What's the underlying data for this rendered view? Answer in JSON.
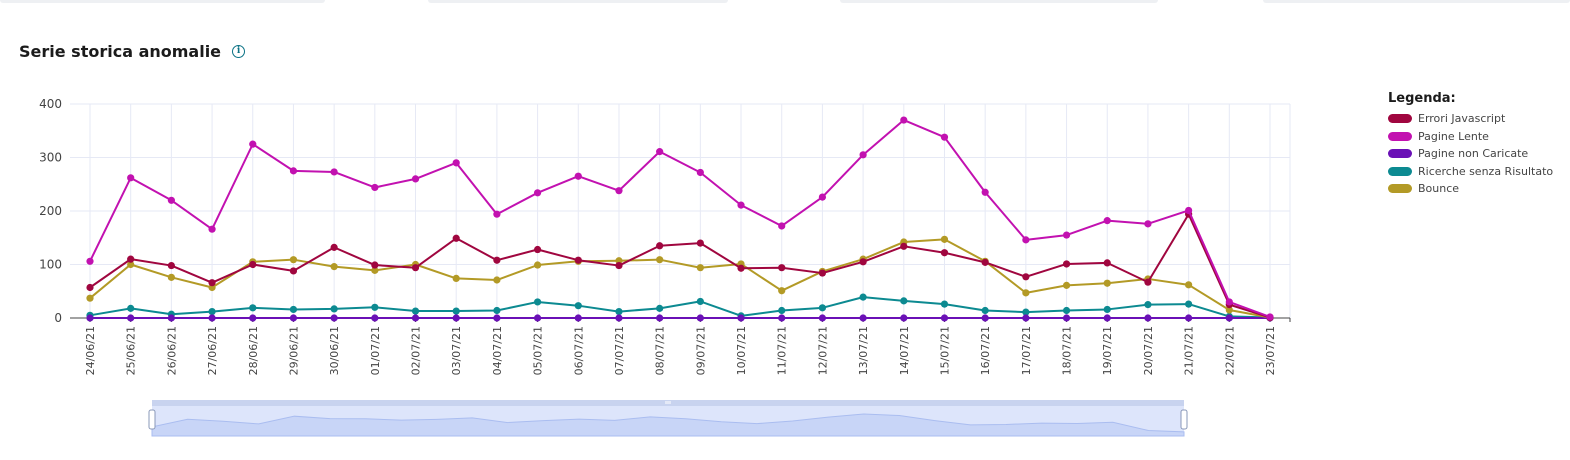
{
  "header": {
    "title": "Serie storica anomalie",
    "info_icon": "info-circle-icon"
  },
  "legend": {
    "title": "Legenda:"
  },
  "colors": {
    "grid": "#e6e9f5",
    "axis": "#444444",
    "brush_fill": "#dde5fb",
    "brush_series": "#c8d5f7"
  },
  "chart_data": {
    "type": "line",
    "x": [
      "24/06/21",
      "25/06/21",
      "26/06/21",
      "27/06/21",
      "28/06/21",
      "29/06/21",
      "30/06/21",
      "01/07/21",
      "02/07/21",
      "03/07/21",
      "04/07/21",
      "05/07/21",
      "06/07/21",
      "07/07/21",
      "08/07/21",
      "09/07/21",
      "10/07/21",
      "11/07/21",
      "12/07/21",
      "13/07/21",
      "14/07/21",
      "15/07/21",
      "16/07/21",
      "17/07/21",
      "18/07/21",
      "19/07/21",
      "20/07/21",
      "21/07/21",
      "22/07/21",
      "23/07/21"
    ],
    "ylim": [
      0,
      400
    ],
    "yticks": [
      0,
      100,
      200,
      300,
      400
    ],
    "grid": true,
    "legend_position": "right",
    "series": [
      {
        "name": "Errori Javascript",
        "color": "#a0063f",
        "values": [
          57,
          110,
          98,
          66,
          100,
          88,
          132,
          99,
          94,
          149,
          108,
          128,
          108,
          98,
          135,
          140,
          93,
          94,
          84,
          105,
          134,
          122,
          104,
          77,
          101,
          103,
          67,
          194,
          25,
          1
        ]
      },
      {
        "name": "Pagine Lente",
        "color": "#c211b0",
        "values": [
          106,
          262,
          220,
          166,
          325,
          275,
          273,
          244,
          260,
          290,
          194,
          234,
          265,
          238,
          311,
          272,
          211,
          172,
          226,
          305,
          370,
          338,
          235,
          146,
          155,
          182,
          176,
          201,
          30,
          2
        ]
      },
      {
        "name": "Pagine non Caricate",
        "color": "#6a10b6",
        "values": [
          0,
          0,
          0,
          0,
          0,
          0,
          0,
          0,
          0,
          0,
          0,
          0,
          0,
          0,
          0,
          0,
          0,
          0,
          0,
          0,
          0,
          0,
          0,
          0,
          0,
          0,
          0,
          0,
          0,
          0
        ]
      },
      {
        "name": "Ricerche senza Risultato",
        "color": "#0c8a91",
        "values": [
          5,
          18,
          7,
          12,
          19,
          16,
          17,
          20,
          13,
          13,
          14,
          30,
          23,
          12,
          18,
          31,
          4,
          14,
          19,
          39,
          32,
          26,
          14,
          11,
          14,
          16,
          25,
          26,
          3,
          1
        ]
      },
      {
        "name": "Bounce",
        "color": "#b39a26",
        "values": [
          37,
          100,
          76,
          57,
          105,
          109,
          96,
          89,
          100,
          74,
          71,
          99,
          106,
          107,
          109,
          94,
          101,
          51,
          87,
          110,
          142,
          147,
          106,
          47,
          61,
          65,
          73,
          62,
          15,
          1
        ]
      }
    ],
    "brush": {
      "start_fraction": 0.097,
      "end_fraction": 0.758
    }
  }
}
